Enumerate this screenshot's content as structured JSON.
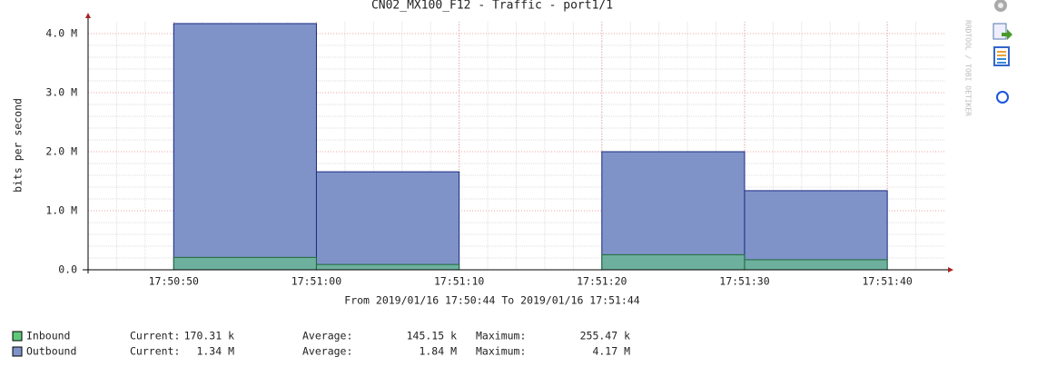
{
  "chart_data": {
    "type": "step-area",
    "title": "CN02_MX100_F12 - Traffic - port1/1",
    "y_label": "bits per second",
    "x_label": "From 2019/01/16 17:50:44 To 2019/01/16 17:51:44",
    "watermark": "RRDTOOL / TOBI OETIKER",
    "x": [
      "17:50:50",
      "17:51:00",
      "17:51:10",
      "17:51:20",
      "17:51:30"
    ],
    "xlim": [
      "17:50:44",
      "17:51:44"
    ],
    "xticks": [
      "17:50:50",
      "17:51:00",
      "17:51:10",
      "17:51:20",
      "17:51:30",
      "17:51:40"
    ],
    "ylim": [
      0,
      4200000
    ],
    "yticks": [
      {
        "value": 0,
        "label": "0.0"
      },
      {
        "value": 1000000,
        "label": "1.0 M"
      },
      {
        "value": 2000000,
        "label": "2.0 M"
      },
      {
        "value": 3000000,
        "label": "3.0 M"
      },
      {
        "value": 4000000,
        "label": "4.0 M"
      }
    ],
    "grid": true,
    "legend_labels": [
      "Current:",
      "Average:",
      "Maximum:"
    ],
    "series": [
      {
        "name": "Outbound",
        "color": "#7f93c9",
        "edge": "#1a2a80",
        "values": [
          4170000,
          1660000,
          null,
          2000000,
          1340000
        ],
        "stats": [
          "1.34 M",
          "1.84 M",
          "4.17 M"
        ]
      },
      {
        "name": "Inbound",
        "color": "#5fc97a",
        "edge": "#1f6a3a",
        "values": [
          210000,
          90000,
          null,
          255470,
          170310
        ],
        "stats": [
          "170.31 k",
          "145.15 k",
          "255.47 k"
        ]
      }
    ]
  }
}
